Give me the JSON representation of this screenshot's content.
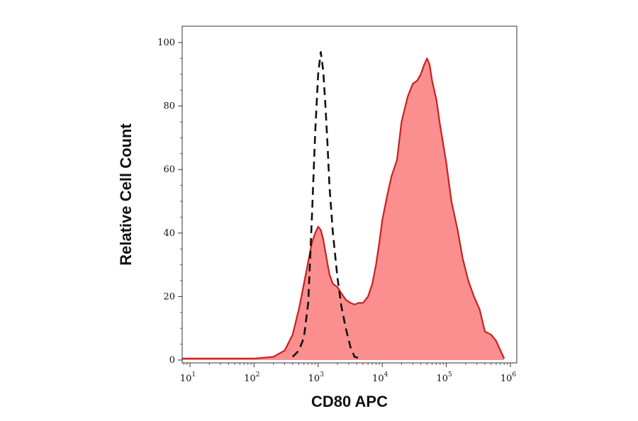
{
  "chart_data": {
    "type": "area",
    "title": "",
    "xlabel": "CD80 APC",
    "ylabel": "Relative Cell Count",
    "x_scale": "log",
    "xlim": [
      10,
      1000000
    ],
    "ylim": [
      0,
      100
    ],
    "x_ticks": [
      {
        "value": 10,
        "base": "10",
        "exp": "1"
      },
      {
        "value": 100,
        "base": "10",
        "exp": "2"
      },
      {
        "value": 1000,
        "base": "10",
        "exp": "3"
      },
      {
        "value": 10000,
        "base": "10",
        "exp": "4"
      },
      {
        "value": 100000,
        "base": "10",
        "exp": "5"
      },
      {
        "value": 1000000,
        "base": "10",
        "exp": "6"
      }
    ],
    "y_ticks": [
      {
        "value": 0,
        "label": "0"
      },
      {
        "value": 20,
        "label": "20"
      },
      {
        "value": 40,
        "label": "40"
      },
      {
        "value": 60,
        "label": "60"
      },
      {
        "value": 80,
        "label": "80"
      },
      {
        "value": 100,
        "label": "100"
      }
    ],
    "grid": false,
    "legend": "none",
    "series": [
      {
        "style": "filled-solid",
        "stroke": "#cc1f1f",
        "fill": "#fb8f8f",
        "x": [
          6.3,
          100,
          200,
          300,
          400,
          500,
          600,
          700,
          800,
          900,
          1000,
          1100,
          1200,
          1300,
          1500,
          1700,
          2000,
          2300,
          2700,
          3200,
          3700,
          4300,
          5000,
          6000,
          7000,
          8000,
          9000,
          10000,
          12000,
          14000,
          17000,
          20000,
          25000,
          30000,
          35000,
          40000,
          45000,
          50000,
          55000,
          60000,
          70000,
          80000,
          100000,
          120000,
          150000,
          180000,
          220000,
          270000,
          330000,
          400000,
          500000,
          600000,
          700000,
          800000
        ],
        "y": [
          0.5,
          0.5,
          1,
          3,
          8,
          16,
          24,
          31,
          37,
          40,
          42,
          41,
          38,
          34,
          27,
          24,
          23,
          21,
          19,
          18,
          17.5,
          18,
          18,
          20,
          24,
          30,
          37,
          44,
          52,
          58,
          63,
          75,
          83,
          87,
          88,
          90,
          93,
          95,
          93,
          88,
          82,
          74,
          62,
          50,
          41,
          32,
          25,
          20,
          16,
          9,
          8,
          6,
          3,
          0.5
        ]
      },
      {
        "style": "dashed",
        "stroke": "#111111",
        "x": [
          400,
          500,
          600,
          700,
          800,
          900,
          1000,
          1100,
          1200,
          1300,
          1400,
          1500,
          1700,
          2000,
          2300,
          2700,
          3200,
          3700,
          4500
        ],
        "y": [
          1,
          3,
          7,
          18,
          45,
          72,
          90,
          97,
          91,
          80,
          68,
          55,
          40,
          26,
          17,
          10,
          4,
          1,
          0.5
        ]
      }
    ]
  }
}
